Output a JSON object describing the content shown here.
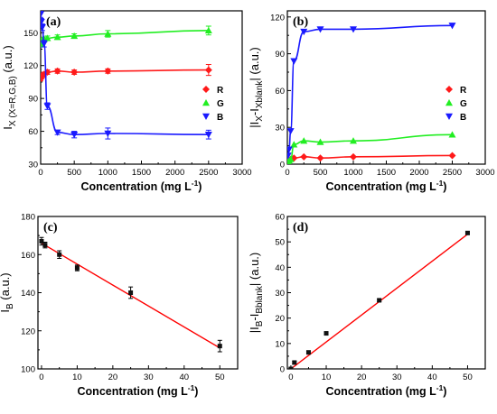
{
  "colors": {
    "R": "#ff1a1a",
    "G": "#22ee22",
    "B": "#1a1aff",
    "linear": "#ff0000"
  },
  "chart_data": [
    {
      "panel": "(a)",
      "type": "line",
      "xlabel": "Concentration (mg L",
      "xlabel_sup": "-1",
      "xlabel_close": ")",
      "ylabel_main": "I",
      "ylabel_sub": "X (X=R,G,B)",
      "ylabel_unit": " (a.u.)",
      "xlim": [
        0,
        3000
      ],
      "ylim": [
        30,
        170
      ],
      "xticks": [
        "0",
        "500",
        "1000",
        "1500",
        "2000",
        "2500",
        "3000"
      ],
      "yticks": [
        "30",
        "60",
        "90",
        "120",
        "150"
      ],
      "ytick_values": [
        30,
        60,
        90,
        120,
        150
      ],
      "legend": "right-middle",
      "series": [
        {
          "name": "R",
          "key": "R",
          "marker": "diamond",
          "x": [
            0,
            10,
            25,
            50,
            100,
            250,
            500,
            1000,
            2500
          ],
          "y": [
            108,
            110,
            111,
            112,
            114,
            115,
            114,
            115,
            116
          ],
          "err": [
            2,
            2,
            2,
            2,
            2,
            2,
            2,
            2,
            5
          ]
        },
        {
          "name": "G",
          "key": "G",
          "marker": "triangle-up",
          "x": [
            0,
            10,
            25,
            50,
            100,
            250,
            500,
            1000,
            2500
          ],
          "y": [
            140,
            141,
            143,
            144,
            145,
            146,
            147,
            149,
            152
          ],
          "err": [
            3,
            3,
            2,
            2,
            2,
            2,
            2,
            3,
            4
          ]
        },
        {
          "name": "B",
          "key": "B",
          "marker": "triangle-down",
          "x": [
            0,
            10,
            25,
            50,
            100,
            250,
            500,
            1000,
            2500
          ],
          "y": [
            167,
            160,
            155,
            140,
            83,
            59,
            57,
            58,
            57
          ],
          "err": [
            3,
            3,
            3,
            3,
            3,
            2,
            3,
            5,
            4
          ]
        }
      ]
    },
    {
      "panel": "(b)",
      "type": "line",
      "xlabel": "Concentration (mg L",
      "xlabel_sup": "-1",
      "xlabel_close": ")",
      "ylabel_main": "|I",
      "ylabel_sub": "X",
      "ylabel_mid": "-I",
      "ylabel_sub2": "Xblank",
      "ylabel_unit": "| (a.u.)",
      "xlim": [
        0,
        3000
      ],
      "ylim": [
        0,
        125
      ],
      "xticks": [
        "0",
        "500",
        "1000",
        "1500",
        "2000",
        "2500",
        "3000"
      ],
      "yticks": [
        "0",
        "30",
        "60",
        "90",
        "120"
      ],
      "ytick_values": [
        0,
        30,
        60,
        90,
        120
      ],
      "legend": "right-middle",
      "series": [
        {
          "name": "R",
          "key": "R",
          "marker": "diamond",
          "x": [
            10,
            25,
            50,
            100,
            250,
            500,
            1000,
            2500
          ],
          "y": [
            2,
            3,
            4,
            5,
            6,
            5,
            6,
            7
          ]
        },
        {
          "name": "G",
          "key": "G",
          "marker": "triangle-up",
          "x": [
            10,
            25,
            50,
            100,
            250,
            500,
            1000,
            2500
          ],
          "y": [
            2,
            3,
            4,
            16,
            19,
            18,
            19,
            24
          ]
        },
        {
          "name": "B",
          "key": "B",
          "marker": "triangle-down",
          "x": [
            10,
            25,
            50,
            100,
            250,
            500,
            1000,
            2500
          ],
          "y": [
            7,
            12,
            27,
            84,
            108,
            110,
            110,
            113
          ]
        }
      ]
    },
    {
      "panel": "(c)",
      "type": "scatter",
      "xlabel": "Concentration (mg L",
      "xlabel_sup": "-1",
      "xlabel_close": ")",
      "ylabel_main": "I",
      "ylabel_sub": "B",
      "ylabel_unit": " (a.u.)",
      "xlim": [
        -1,
        55
      ],
      "ylim": [
        100,
        180
      ],
      "xticks": [
        "0",
        "10",
        "20",
        "30",
        "40",
        "50"
      ],
      "xtick_values": [
        0,
        10,
        20,
        30,
        40,
        50
      ],
      "yticks": [
        "100",
        "120",
        "140",
        "160",
        "180"
      ],
      "ytick_values": [
        100,
        120,
        140,
        160,
        180
      ],
      "points": {
        "x": [
          0,
          1,
          5,
          10,
          25,
          50
        ],
        "y": [
          167,
          165,
          160,
          153,
          140,
          112
        ],
        "err": [
          2,
          1.5,
          2,
          1.5,
          3,
          3
        ]
      },
      "fit": {
        "x": [
          0,
          50
        ],
        "y": [
          166,
          111
        ]
      }
    },
    {
      "panel": "(d)",
      "type": "scatter",
      "xlabel": "Concentration (mg L",
      "xlabel_sup": "-1",
      "xlabel_close": ")",
      "ylabel_main": "|I",
      "ylabel_sub": "B",
      "ylabel_mid": "-I",
      "ylabel_sub2": "Bblank",
      "ylabel_unit": "| (a.u.)",
      "xlim": [
        -1,
        55
      ],
      "ylim": [
        0,
        60
      ],
      "xticks": [
        "0",
        "10",
        "20",
        "30",
        "40",
        "50"
      ],
      "xtick_values": [
        0,
        10,
        20,
        30,
        40,
        50
      ],
      "yticks": [
        "0",
        "10",
        "20",
        "30",
        "40",
        "50",
        "60"
      ],
      "ytick_values": [
        0,
        10,
        20,
        30,
        40,
        50,
        60
      ],
      "points": {
        "x": [
          0,
          1,
          5,
          10,
          25,
          50
        ],
        "y": [
          0,
          2.5,
          6.5,
          14,
          27,
          53.5
        ],
        "err": [
          0.5,
          0.5,
          0.5,
          0.5,
          0.5,
          0.5
        ]
      },
      "fit": {
        "x": [
          0,
          50
        ],
        "y": [
          0,
          53
        ]
      }
    }
  ]
}
